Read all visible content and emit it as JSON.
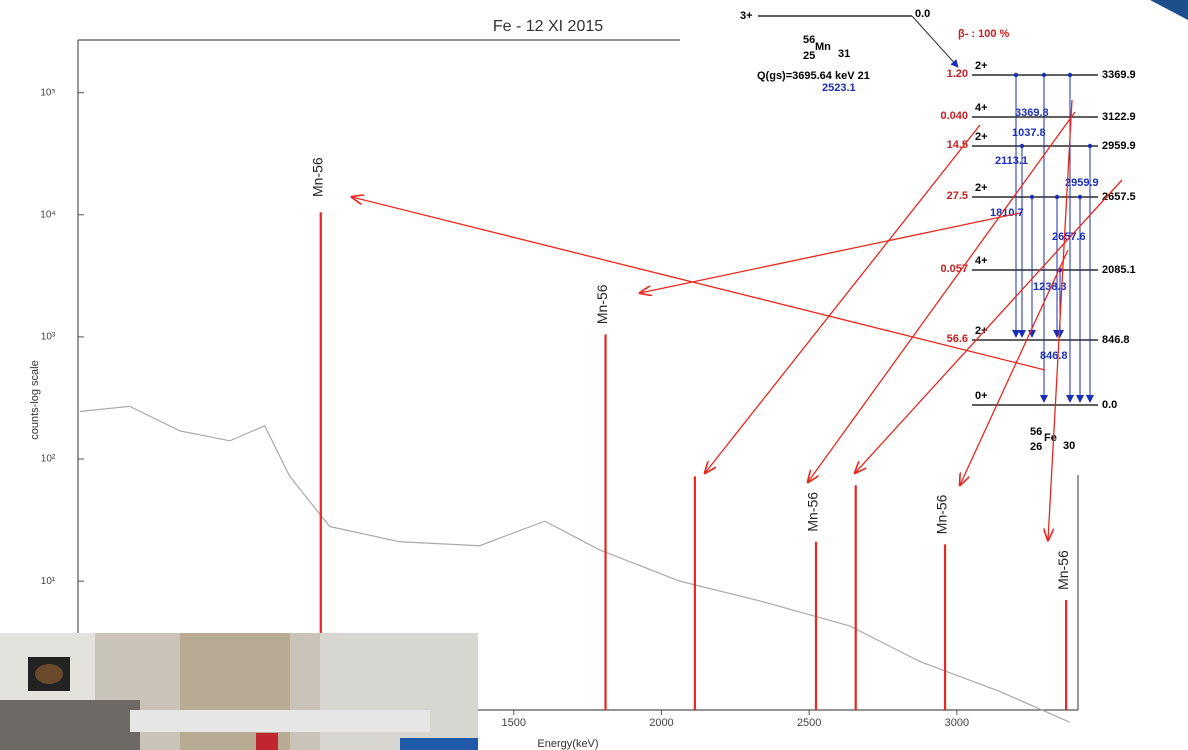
{
  "chart_data": {
    "type": "spectrum",
    "title": "Fe - 12 XI 2015",
    "x_label": "Energy(keV)",
    "y_label": "counts-log scale",
    "log_scale": true,
    "xlim": [
      25,
      3410
    ],
    "xticks": [
      1500,
      2000,
      2500,
      3000
    ],
    "ylim": [
      0.5,
      270000
    ],
    "yticks": [
      {
        "value": 100000,
        "label": "10⁵"
      },
      {
        "value": 10000,
        "label": "10⁴"
      },
      {
        "value": 1000,
        "label": "10³"
      },
      {
        "value": 100,
        "label": "10²"
      },
      {
        "value": 10,
        "label": "10¹"
      }
    ],
    "background": {
      "color": "#aaaaaa",
      "x": [
        31,
        200,
        370,
        539,
        657,
        742,
        837,
        877,
        1114,
        1385,
        1605,
        1791,
        2062,
        2332,
        2637,
        2874,
        3145,
        3382
      ],
      "values": [
        245,
        270,
        170,
        141,
        187,
        72,
        37,
        28,
        21,
        19.5,
        31,
        18,
        10,
        6.9,
        4.3,
        2.2,
        1.25,
        0.7
      ]
    },
    "peaks": {
      "color": "#e8281e",
      "x": [
        846.8,
        1810.7,
        2113.1,
        2523.1,
        2657.6,
        2959.9,
        3369.8
      ],
      "values": [
        10500,
        1050,
        72,
        21,
        61,
        20,
        7
      ],
      "labels": [
        "Mn-56",
        "Mn-56",
        null,
        "Mn-56",
        null,
        "Mn-56",
        "Mn-56"
      ]
    }
  },
  "decay_scheme": {
    "parent": {
      "spin": "3+",
      "energy": "0.0",
      "mass": "56",
      "z": "25",
      "symbol": "Mn",
      "n": "31"
    },
    "branch": "β- : 100 %",
    "q_value": "Q(gs)=3695.64 keV 21",
    "levels": [
      {
        "spin": "2+",
        "intensity": "1.20",
        "energy": "3369.9"
      },
      {
        "spin": "4+",
        "intensity": "0.040",
        "energy": "3122.9"
      },
      {
        "spin": "2+",
        "intensity": "14.5",
        "energy": "2959.9"
      },
      {
        "spin": "2+",
        "intensity": "27.5",
        "energy": "2657.5"
      },
      {
        "spin": "4+",
        "intensity": "0.057",
        "energy": "2085.1"
      },
      {
        "spin": "2+",
        "intensity": "56.6",
        "energy": "846.8"
      },
      {
        "spin": "0+",
        "intensity": null,
        "energy": "0.0"
      }
    ],
    "gammas": [
      "2523.1",
      "3369.8",
      "1037.8",
      "2113.1",
      "2959.9",
      "1810.7",
      "2657.6",
      "1238.3",
      "846.8"
    ],
    "daughter": {
      "mass": "56",
      "z": "26",
      "symbol": "Fe",
      "n": "30"
    }
  }
}
